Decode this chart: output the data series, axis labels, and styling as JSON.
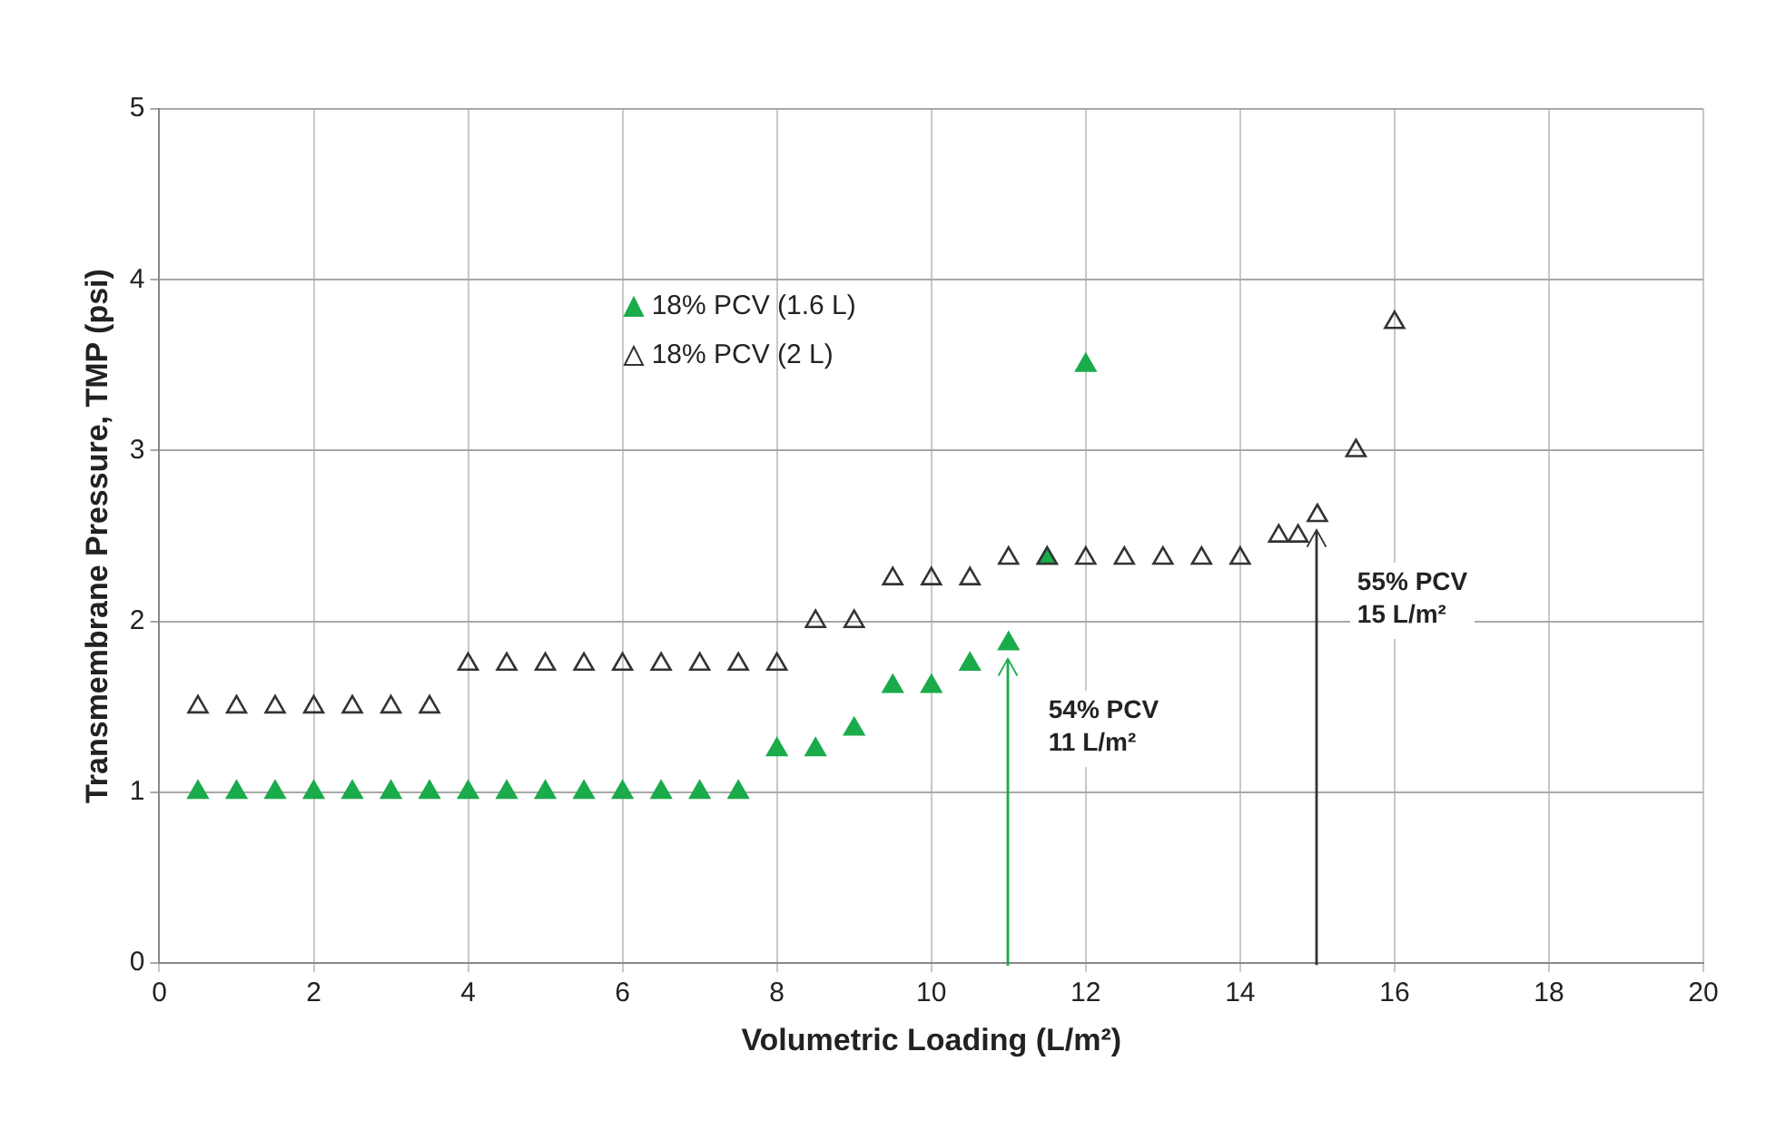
{
  "chart_data": {
    "type": "scatter",
    "xlabel": "Volumetric Loading (L/m²)",
    "ylabel": "Transmembrane Pressure, TMP (psi)",
    "xlim": [
      0,
      20
    ],
    "xticks": [
      0,
      2,
      4,
      6,
      8,
      10,
      12,
      14,
      16,
      18,
      20
    ],
    "ylim": [
      0,
      5
    ],
    "yticks": [
      0,
      1,
      2,
      3,
      4,
      5
    ],
    "grid": true,
    "legend": "top left",
    "marker": "triangle",
    "series": [
      {
        "name": "18% PCV (1.6 L)",
        "color": "#1aab4b",
        "x": [
          0.5,
          1,
          1.5,
          2,
          2.5,
          3,
          3.5,
          4,
          4.5,
          5,
          5.5,
          6,
          6.5,
          7,
          7.5,
          8,
          8.5,
          9,
          9.5,
          10,
          10.5,
          11,
          11.5,
          12
        ],
        "values": [
          1,
          1,
          1,
          1,
          1,
          1,
          1,
          1,
          1,
          1,
          1,
          1,
          1,
          1,
          1,
          1.25,
          1.25,
          1.37,
          1.62,
          1.62,
          1.75,
          1.87,
          2.37,
          3.5
        ]
      },
      {
        "name": "18% PCV (2 L)",
        "color": "#333333",
        "x": [
          0.5,
          1,
          1.5,
          2,
          2.5,
          3,
          3.5,
          4,
          4.5,
          5,
          5.5,
          6,
          6.5,
          7,
          7.5,
          8,
          8.5,
          9,
          9.5,
          10,
          10.5,
          11,
          11.5,
          12,
          12.5,
          13,
          13.5,
          14,
          14.5,
          14.75,
          15,
          15.5,
          16
        ],
        "values": [
          1.5,
          1.5,
          1.5,
          1.5,
          1.5,
          1.5,
          1.5,
          1.75,
          1.75,
          1.75,
          1.75,
          1.75,
          1.75,
          1.75,
          1.75,
          1.75,
          2,
          2,
          2.25,
          2.25,
          2.25,
          2.37,
          2.37,
          2.37,
          2.37,
          2.37,
          2.37,
          2.37,
          2.5,
          2.5,
          2.62,
          3,
          3.75
        ]
      }
    ],
    "annotations": [
      {
        "text": "54% PCV\n11 L/m²",
        "x": 11,
        "y": 1.87
      },
      {
        "text": "55% PCV\n15 L/m²",
        "x": 15,
        "y": 2.62
      }
    ]
  }
}
